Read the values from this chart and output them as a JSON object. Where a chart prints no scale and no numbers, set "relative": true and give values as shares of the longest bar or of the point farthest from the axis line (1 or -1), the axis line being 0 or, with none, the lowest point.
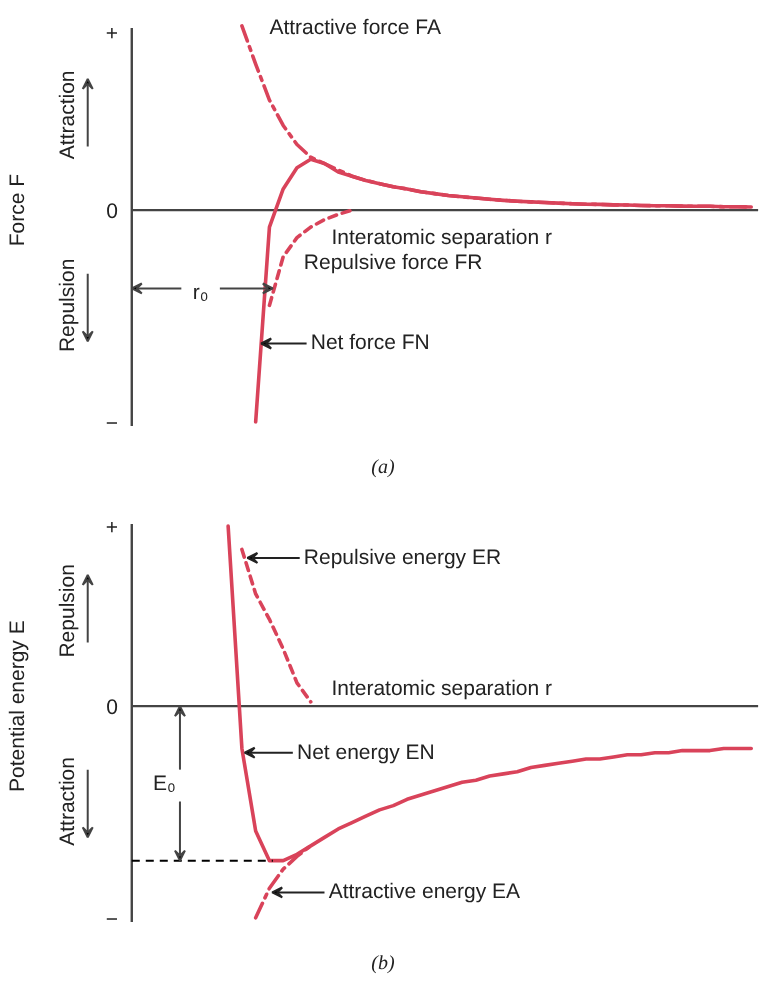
{
  "chart_data": [
    {
      "type": "line",
      "title": "(a)",
      "xlabel": "Interatomic separation r",
      "ylabel": "Force F",
      "relative": true,
      "annotations": [
        "+",
        "0",
        "−",
        "Attraction",
        "Repulsion",
        "r₀"
      ],
      "categories": [
        null,
        null,
        null,
        null,
        null,
        null,
        null,
        null,
        null,
        null,
        null,
        null,
        null,
        null,
        null,
        null,
        null,
        null,
        null,
        null,
        null,
        null,
        null,
        null,
        null,
        null,
        null,
        null,
        null,
        null,
        null,
        null,
        null,
        null,
        null,
        null,
        null,
        null,
        null,
        null,
        null,
        null,
        null,
        null,
        null,
        null
      ],
      "series": [
        {
          "name": "Attractive force FA",
          "color": "#d9435a",
          "line_style": "dashdot",
          "values": [
            null,
            null,
            null,
            null,
            null,
            null,
            null,
            null,
            0.87,
            0.69,
            0.52,
            0.4,
            0.31,
            0.25,
            0.22,
            0.19,
            0.16,
            0.14,
            0.125,
            0.11,
            0.1,
            0.087,
            0.078,
            0.069,
            0.063,
            0.057,
            0.051,
            0.046,
            0.042,
            0.039,
            0.036,
            0.033,
            0.03,
            0.028,
            0.027,
            0.025,
            0.024,
            0.022,
            0.021,
            0.021,
            0.019,
            0.018,
            0.018,
            0.016,
            0.016,
            0.015
          ]
        },
        {
          "name": "Repulsive force FR",
          "color": "#d9435a",
          "line_style": "dashed",
          "values": [
            null,
            null,
            null,
            null,
            null,
            null,
            null,
            null,
            null,
            null,
            -0.45,
            -0.22,
            -0.13,
            -0.08,
            -0.045,
            -0.02,
            0,
            null,
            null,
            null,
            null,
            null,
            null,
            null,
            null,
            null,
            null,
            null,
            null,
            null,
            null,
            null,
            null,
            null,
            null,
            null,
            null,
            null,
            null,
            null,
            null,
            null,
            null,
            null,
            null,
            null
          ]
        },
        {
          "name": "Net force FN",
          "color": "#d9435a",
          "line_style": "solid",
          "values": [
            null,
            null,
            null,
            null,
            null,
            null,
            null,
            null,
            null,
            -1,
            -0.08,
            0.1,
            0.2,
            0.24,
            0.22,
            0.18,
            0.16,
            0.14,
            0.125,
            0.11,
            0.1,
            0.087,
            0.078,
            0.069,
            0.063,
            0.057,
            0.051,
            0.046,
            0.042,
            0.039,
            0.036,
            0.033,
            0.03,
            0.028,
            0.027,
            0.025,
            0.024,
            0.022,
            0.021,
            0.021,
            0.019,
            0.018,
            0.018,
            0.016,
            0.016,
            0.015
          ]
        }
      ]
    },
    {
      "type": "line",
      "title": "(b)",
      "xlabel": "Interatomic separation r",
      "ylabel": "Potential energy E",
      "relative": true,
      "annotations": [
        "+",
        "0",
        "−",
        "Repulsion",
        "Attraction",
        "E₀"
      ],
      "ref_lines": [
        {
          "axis": "y",
          "value": -0.73,
          "label": null,
          "line_style": "dashed",
          "color": "#000000"
        }
      ],
      "categories": [
        null,
        null,
        null,
        null,
        null,
        null,
        null,
        null,
        null,
        null,
        null,
        null,
        null,
        null,
        null,
        null,
        null,
        null,
        null,
        null,
        null,
        null,
        null,
        null,
        null,
        null,
        null,
        null,
        null,
        null,
        null,
        null,
        null,
        null,
        null,
        null,
        null,
        null,
        null,
        null,
        null,
        null,
        null,
        null,
        null,
        null
      ],
      "series": [
        {
          "name": "Repulsive energy ER",
          "color": "#d9435a",
          "line_style": "dashed",
          "values": [
            null,
            null,
            null,
            null,
            null,
            null,
            null,
            null,
            0.74,
            0.53,
            0.41,
            0.27,
            0.11,
            0.02,
            null,
            null,
            null,
            null,
            null,
            null,
            null,
            null,
            null,
            null,
            null,
            null,
            null,
            null,
            null,
            null,
            null,
            null,
            null,
            null,
            null,
            null,
            null,
            null,
            null,
            null,
            null,
            null,
            null,
            null,
            null,
            null
          ]
        },
        {
          "name": "Net energy EN",
          "color": "#d9435a",
          "line_style": "solid",
          "values": [
            null,
            null,
            null,
            null,
            null,
            null,
            null,
            0.85,
            -0.2,
            -0.59,
            -0.73,
            -0.73,
            -0.7,
            -0.66,
            -0.62,
            -0.58,
            -0.55,
            -0.52,
            -0.49,
            -0.47,
            -0.44,
            -0.42,
            -0.4,
            -0.38,
            -0.36,
            -0.35,
            -0.33,
            -0.32,
            -0.31,
            -0.29,
            -0.28,
            -0.27,
            -0.26,
            -0.25,
            -0.25,
            -0.24,
            -0.23,
            -0.23,
            -0.22,
            -0.22,
            -0.21,
            -0.21,
            -0.21,
            -0.2,
            -0.2,
            -0.2
          ]
        },
        {
          "name": "Attractive energy EA",
          "color": "#d9435a",
          "line_style": "dashdot",
          "values": [
            null,
            null,
            null,
            null,
            null,
            null,
            null,
            null,
            null,
            -1.0,
            -0.86,
            -0.77,
            -0.71,
            -0.66,
            null,
            null,
            null,
            null,
            null,
            null,
            null,
            null,
            null,
            null,
            null,
            null,
            null,
            null,
            null,
            null,
            null,
            null,
            null,
            null,
            null,
            null,
            null,
            null,
            null,
            null,
            null,
            null,
            null,
            null,
            null,
            null
          ]
        }
      ]
    }
  ]
}
